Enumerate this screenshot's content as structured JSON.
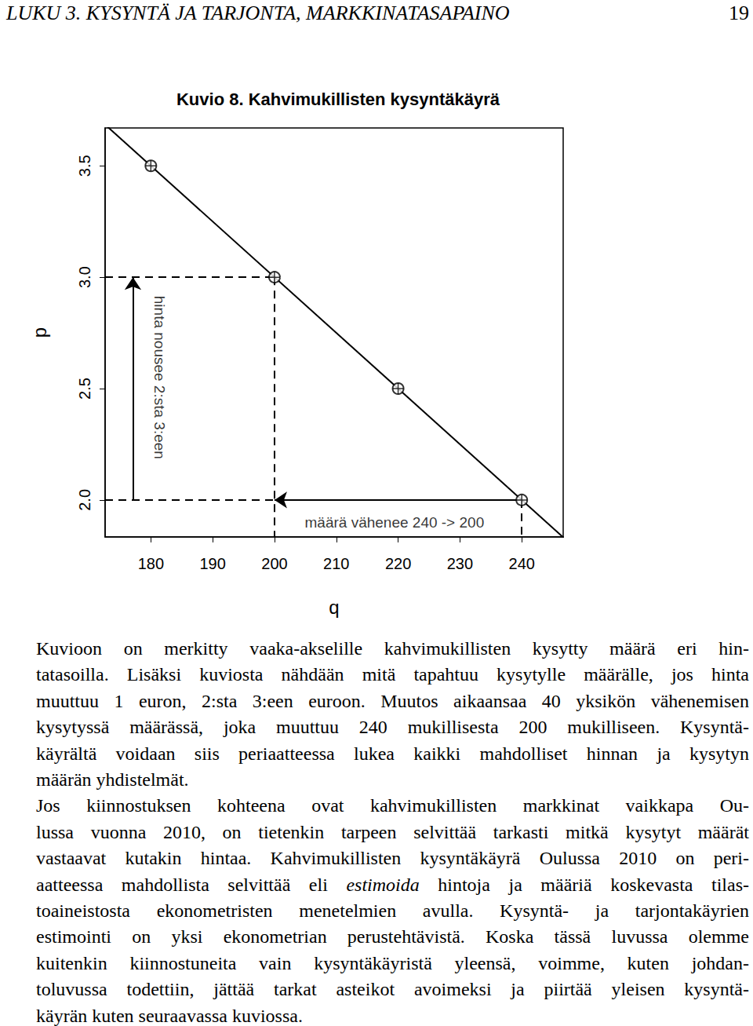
{
  "header": {
    "title": "LUKU 3.  KYSYNTÄ JA TARJONTA, MARKKINATASAPAINO",
    "page": "19"
  },
  "chart_data": {
    "type": "line",
    "title": "Kuvio 8. Kahvimukillisten kysyntäkäyrä",
    "x_label": "q",
    "y_label": "p",
    "x": [
      180,
      200,
      220,
      240
    ],
    "values": [
      3.5,
      3.0,
      2.5,
      2.0
    ],
    "marker": "circle-cross",
    "color": "#000000",
    "line": {
      "x": [
        172,
        248
      ],
      "values": [
        3.7,
        1.8
      ]
    },
    "xlim": [
      172.6,
      246.7
    ],
    "xticks": [
      180,
      190,
      200,
      210,
      220,
      230,
      240
    ],
    "ylim": [
      1.834,
      3.67
    ],
    "yticks": [
      {
        "value": 2,
        "label": "2.0"
      },
      {
        "value": 2.5,
        "label": "2.5"
      },
      {
        "value": 3,
        "label": "3.0"
      },
      {
        "value": 3.5,
        "label": "3.5"
      }
    ],
    "grid": false,
    "guides": [
      {
        "x": 200,
        "y": 3.0
      },
      {
        "x": 240,
        "y": 2.0
      }
    ],
    "annotations": [
      {
        "text": "hinta nousee 2:sta 3:een",
        "x": 181.4,
        "y": 2.55,
        "arrow": {
          "x": [
            177.1,
            177.1
          ],
          "y": [
            2.0,
            3.0
          ]
        }
      },
      {
        "text": "määrä vähenee 240 -> 200",
        "x": 219.4,
        "y": 1.9,
        "arrow": {
          "x": [
            240,
            200
          ],
          "y": [
            2.0,
            2.0
          ]
        }
      }
    ]
  },
  "body": {
    "paragraphs": [
      [
        "Kuvioon on merkitty vaaka-akselille kahvimukillisten kysytty määrä eri hin-",
        "tatasoilla. Lisäksi kuviosta nähdään mitä tapahtuu kysytylle määrälle, jos hinta",
        "muuttuu 1 euron, 2:sta 3:een euroon. Muutos aikaansaa 40 yksikön vähenemisen",
        "kysytyssä määrässä, joka muuttuu 240 mukillisesta 200 mukilliseen. Kysyntä-",
        "käyrältä voidaan siis periaatteessa lukea kaikki mahdolliset hinnan ja kysytyn",
        "määrän yhdistelmät."
      ],
      [
        "Jos kiinnostuksen kohteena ovat kahvimukillisten markkinat vaikkapa Ou-",
        "lussa vuonna 2010, on tietenkin tarpeen selvittää tarkasti mitkä kysytyt määrät",
        "vastaavat kutakin hintaa. Kahvimukillisten kysyntäkäyrä Oulussa 2010 on peri-",
        [
          {
            "text": "aatteessa mahdollista selvittää eli "
          },
          {
            "text": "estimoida",
            "emphasis": true
          },
          {
            "text": " hintoja ja määriä koskevasta tilas-"
          }
        ],
        "toaineistosta ekonometristen menetelmien avulla. Kysyntä- ja tarjontakäyrien",
        "estimointi on yksi ekonometrian perustehtävistä. Koska tässä luvussa olemme",
        "kuitenkin kiinnostuneita vain kysyntäkäyristä yleensä, voimme, kuten johdan-",
        "toluvussa todettiin, jättää tarkat asteikot avoimeksi ja piirtää yleisen kysyntä-",
        "käyrän kuten seuraavassa kuviossa."
      ]
    ]
  }
}
